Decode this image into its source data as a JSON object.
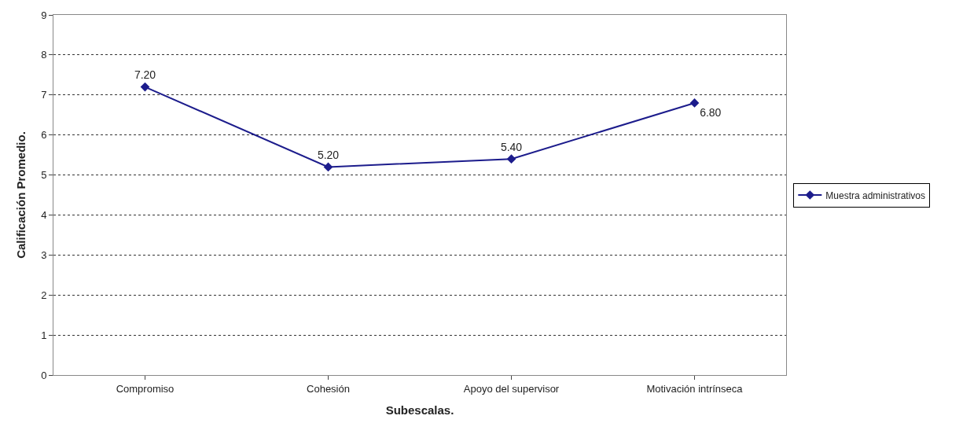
{
  "chart_data": {
    "type": "line",
    "xlabel": "Subescalas.",
    "ylabel": "Calificación Promedio.",
    "categories": [
      "Compromiso",
      "Cohesión",
      "Apoyo del supervisor",
      "Motivación intrínseca"
    ],
    "series": [
      {
        "name": "Muestra administrativos",
        "color": "#1c1c8c",
        "values": [
          7.2,
          5.2,
          5.4,
          6.8
        ],
        "value_labels": [
          "7.20",
          "5.20",
          "5.40",
          "6.80"
        ]
      }
    ],
    "ylim": [
      0,
      9
    ],
    "yticks": [
      0,
      1,
      2,
      3,
      4,
      5,
      6,
      7,
      8,
      9
    ],
    "grid": "y",
    "legend": "right",
    "marker": "diamond",
    "line_style": "solid"
  }
}
